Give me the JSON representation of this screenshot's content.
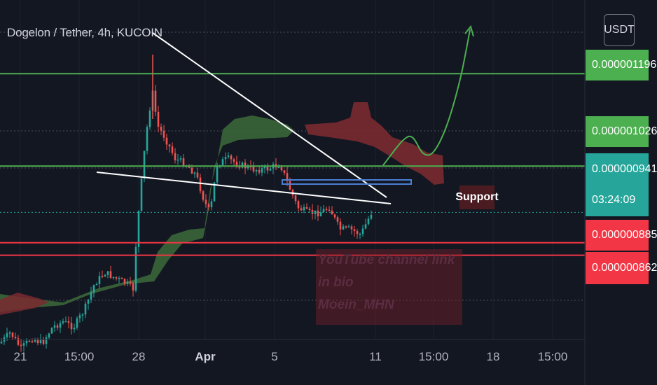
{
  "symbol_title": "Dogelon / Tether, 4h, KUCOIN",
  "currency_button": "USDT",
  "price_labels": {
    "upper_resistance": "0.000001196",
    "resistance": "0.000001026",
    "current_price": "0.000000941",
    "countdown": "03:24:09",
    "support_1": "0.000000885",
    "support_2": "0.000000862"
  },
  "annotation_support": "Support",
  "watermark": {
    "line1": "YouTube channel link in bio",
    "line2": "Moein_MHN"
  },
  "x_axis_labels": [
    "21",
    "15:00",
    "28",
    "Apr",
    "5",
    "11",
    "15:00",
    "18",
    "15:00"
  ],
  "colors": {
    "background": "#131722",
    "green_level": "#4caf50",
    "red_level": "#f23645",
    "current_price": "#26a69a",
    "bull_candle": "#26a69a",
    "bear_candle": "#ef5350",
    "cloud_bull": "#3d6b3a",
    "cloud_bear": "#7a2a30"
  },
  "chart_data": {
    "type": "candlestick",
    "title": "Dogelon / Tether, 4h, KUCOIN",
    "price_unit": "USDT",
    "y_range": [
      6.8e-07,
      1.32e-06
    ],
    "horizontal_levels": [
      {
        "price": 1.196e-06,
        "color": "green"
      },
      {
        "price": 1.026e-06,
        "color": "green"
      },
      {
        "price": 9.41e-07,
        "color": "teal",
        "note": "current price"
      },
      {
        "price": 8.85e-07,
        "color": "red"
      },
      {
        "price": 8.62e-07,
        "color": "red"
      }
    ],
    "price_path": [
      [
        0,
        7e-07
      ],
      [
        15,
        7.2e-07
      ],
      [
        30,
        6.9e-07
      ],
      [
        45,
        7.1e-07
      ],
      [
        60,
        7e-07
      ],
      [
        75,
        7.3e-07
      ],
      [
        90,
        7.4e-07
      ],
      [
        105,
        7.3e-07
      ],
      [
        120,
        7.6e-07
      ],
      [
        135,
        8.1e-07
      ],
      [
        150,
        8.3e-07
      ],
      [
        165,
        8.2e-07
      ],
      [
        180,
        8.1e-07
      ],
      [
        190,
        8e-07
      ],
      [
        195,
        9e-07
      ],
      [
        205,
        1.04e-06
      ],
      [
        212,
        1.12e-06
      ],
      [
        218,
        1.16e-06
      ],
      [
        225,
        1.1e-06
      ],
      [
        235,
        1.08e-06
      ],
      [
        250,
        1.04e-06
      ],
      [
        265,
        1.03e-06
      ],
      [
        280,
        1.01e-06
      ],
      [
        292,
        9.6e-07
      ],
      [
        300,
        9.4e-07
      ],
      [
        310,
        1.03e-06
      ],
      [
        325,
        1.04e-06
      ],
      [
        340,
        1.03e-06
      ],
      [
        360,
        1.02e-06
      ],
      [
        380,
        1.02e-06
      ],
      [
        400,
        1.03e-06
      ],
      [
        412,
        9.9e-07
      ],
      [
        425,
        9.5e-07
      ],
      [
        440,
        9.4e-07
      ],
      [
        455,
        9.4e-07
      ],
      [
        470,
        9.5e-07
      ],
      [
        485,
        9.1e-07
      ],
      [
        500,
        9.1e-07
      ],
      [
        515,
        9e-07
      ],
      [
        530,
        9.4e-07
      ]
    ]
  }
}
